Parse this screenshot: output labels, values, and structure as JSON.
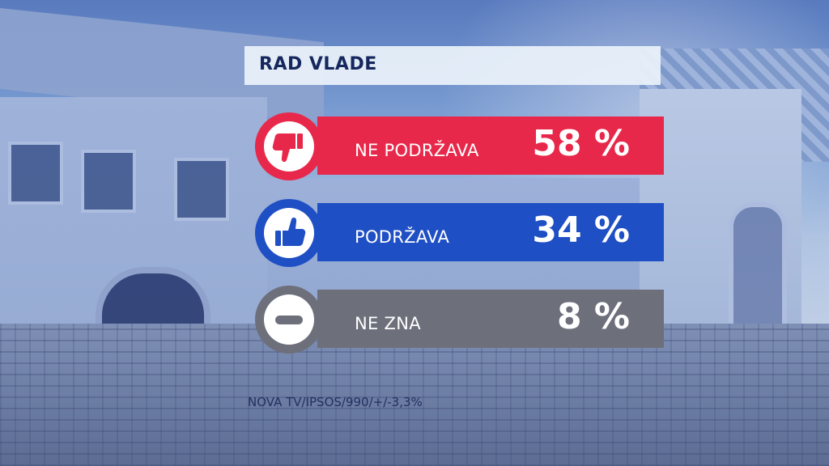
{
  "title": "RAD VLADE",
  "source": "NOVA TV/IPSOS/990/+/-3,3%",
  "colors": {
    "ne_podrzava": "#e8284a",
    "podrzava": "#1f4fc4",
    "ne_zna": "#6d6f7b",
    "title_text": "#15275c"
  },
  "chart_data": {
    "type": "bar",
    "title": "RAD VLADE",
    "categories": [
      "NE PODRŽAVA",
      "PODRŽAVA",
      "NE ZNA"
    ],
    "values": [
      58,
      34,
      8
    ],
    "value_labels": [
      "58 %",
      "34 %",
      "8 %"
    ],
    "icons": [
      "thumbs-down-icon",
      "thumbs-up-icon",
      "minus-icon"
    ]
  }
}
